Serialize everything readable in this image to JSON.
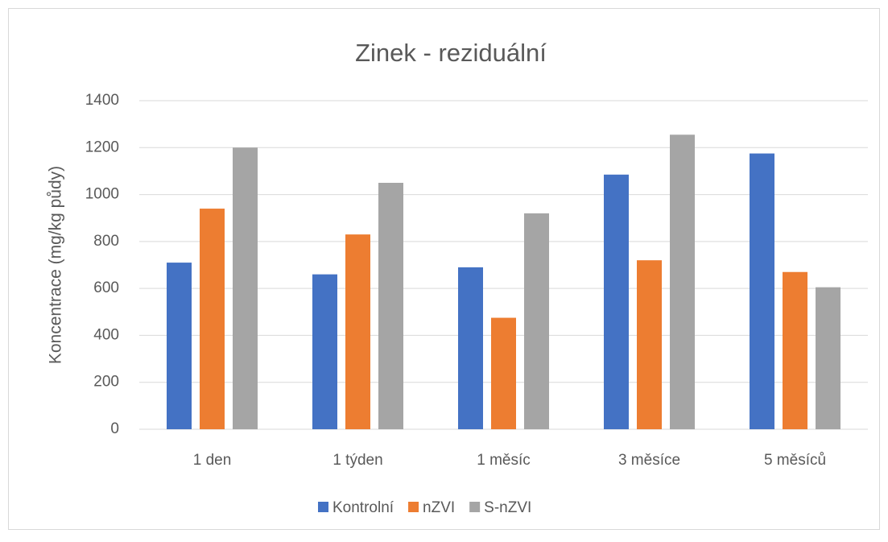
{
  "chart_data": {
    "type": "bar",
    "title": "Zinek - reziduální",
    "y_label": "Koncentrace (mg/kg půdy)",
    "categories": [
      "1 den",
      "1 týden",
      "1 měsíc",
      "3 měsíce",
      "5 měsíců"
    ],
    "series": [
      {
        "name": "Kontrolní",
        "color": "#4472c4",
        "values": [
          710,
          660,
          690,
          1085,
          1175
        ]
      },
      {
        "name": "nZVI",
        "color": "#ed7d31",
        "values": [
          940,
          830,
          475,
          720,
          670
        ]
      },
      {
        "name": "S-nZVI",
        "color": "#a5a5a5",
        "values": [
          1200,
          1050,
          920,
          1255,
          605
        ]
      }
    ],
    "ylim": [
      0,
      1400
    ],
    "yticks": [
      0,
      200,
      400,
      600,
      800,
      1000,
      1200,
      1400
    ],
    "grid": true,
    "legend": "bottom"
  }
}
